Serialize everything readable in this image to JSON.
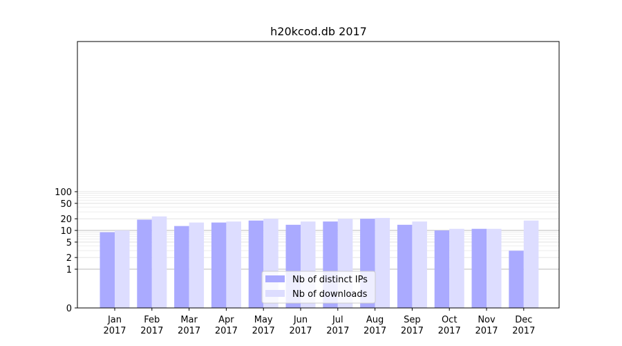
{
  "chart_data": {
    "type": "bar",
    "title": "h20kcod.db 2017",
    "xlabel": "",
    "ylabel": "",
    "y_scale": "symlog",
    "ylim": [
      0,
      110
    ],
    "y_ticks": [
      0,
      1,
      2,
      5,
      10,
      20,
      50,
      100
    ],
    "y_tick_labels": [
      "0",
      "1",
      "2",
      "5",
      "10",
      "20",
      "50",
      "100"
    ],
    "grid": true,
    "legend_position": "bottom-center",
    "categories": [
      "Jan\n2017",
      "Feb\n2017",
      "Mar\n2017",
      "Apr\n2017",
      "May\n2017",
      "Jun\n2017",
      "Jul\n2017",
      "Aug\n2017",
      "Sep\n2017",
      "Oct\n2017",
      "Nov\n2017",
      "Dec\n2017"
    ],
    "series": [
      {
        "name": "Nb of distinct IPs",
        "color": "#aaaaff",
        "values": [
          9,
          19,
          13,
          16,
          18,
          14,
          17,
          20,
          14,
          10,
          11,
          3
        ]
      },
      {
        "name": "Nb of downloads",
        "color": "#ddddff",
        "values": [
          10,
          23,
          16,
          17,
          20,
          17,
          20,
          21,
          17,
          11,
          11,
          18
        ]
      }
    ]
  }
}
